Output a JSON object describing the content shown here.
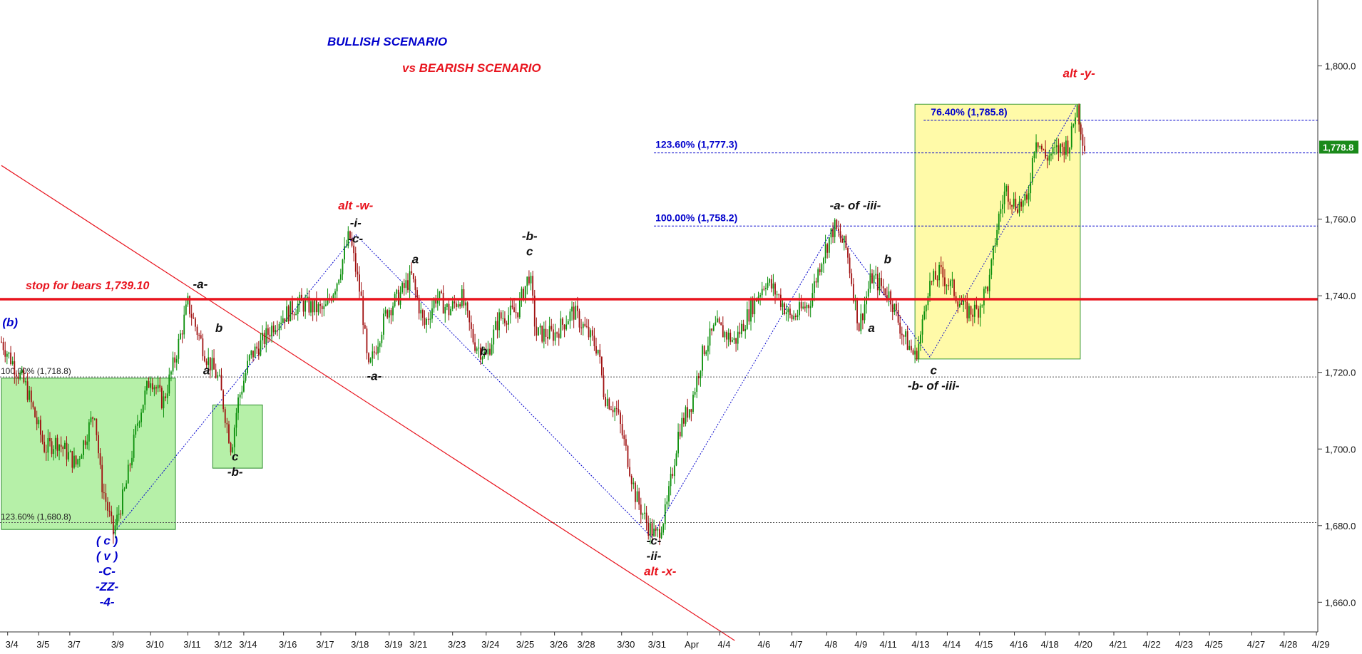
{
  "chart_data": {
    "type": "candlestick",
    "title": "BULLISH SCENARIO",
    "subtitle": "vs BEARISH SCENARIO",
    "colors": {
      "bullish": "#0000cc",
      "bearish": "#e8141e",
      "black": "#111111",
      "up_candle": "#0a8f0a",
      "down_candle": "#a01010",
      "green_box": "#b6f0a8",
      "yellow_box": "#fffaa8",
      "last_price_bg": "#1a8a1a"
    },
    "ylim": [
      1650,
      1815
    ],
    "yticks": [
      "1,660.0",
      "1,680.0",
      "1,700.0",
      "1,720.0",
      "1,740.0",
      "1,760.0",
      "1,800.0"
    ],
    "ytick_values": [
      1660,
      1680,
      1700,
      1720,
      1740,
      1760,
      1800
    ],
    "xticks": [
      "3/4",
      "3/5",
      "3/7",
      "3/9",
      "3/10",
      "3/11",
      "3/12",
      "3/14",
      "3/16",
      "3/17",
      "3/18",
      "3/19",
      "3/21",
      "3/23",
      "3/24",
      "3/25",
      "3/26",
      "3/28",
      "3/30",
      "3/31",
      "Apr",
      "4/4",
      "4/6",
      "4/7",
      "4/8",
      "4/9",
      "4/11",
      "4/13",
      "4/14",
      "4/15",
      "4/16",
      "4/18",
      "4/20",
      "4/21",
      "4/22",
      "4/23",
      "4/25",
      "4/27",
      "4/28",
      "4/29"
    ],
    "xtick_index": [
      0.5,
      3,
      5.5,
      9,
      12,
      15,
      17.5,
      19.5,
      22.7,
      25.7,
      28.5,
      31.2,
      33.2,
      36.3,
      39,
      41.8,
      44.5,
      46.7,
      49.9,
      52.4,
      55.2,
      57.8,
      61,
      63.6,
      66.4,
      68.8,
      71,
      73.6,
      76.1,
      78.7,
      81.5,
      84,
      86.7,
      89.5,
      92.2,
      94.8,
      97.2,
      100.6,
      103.2,
      105.8
    ],
    "last_price": "1,778.8",
    "last_price_value": 1778.8,
    "price_path": [
      [
        0,
        1728
      ],
      [
        2,
        1716
      ],
      [
        3.5,
        1700
      ],
      [
        4.5,
        1702
      ],
      [
        6,
        1696
      ],
      [
        7.5,
        1710
      ],
      [
        8,
        1692
      ],
      [
        9,
        1678
      ],
      [
        10,
        1690
      ],
      [
        11,
        1708
      ],
      [
        12,
        1719
      ],
      [
        13,
        1712
      ],
      [
        14,
        1724
      ],
      [
        15,
        1738
      ],
      [
        15.5,
        1733
      ],
      [
        16.5,
        1724
      ],
      [
        17.5,
        1718
      ],
      [
        18.5,
        1700
      ],
      [
        19,
        1712
      ],
      [
        20,
        1724
      ],
      [
        21,
        1728
      ],
      [
        22,
        1733
      ],
      [
        24,
        1738
      ],
      [
        26,
        1736
      ],
      [
        27,
        1744
      ],
      [
        28,
        1756
      ],
      [
        29,
        1738
      ],
      [
        29.5,
        1720
      ],
      [
        31,
        1736
      ],
      [
        32,
        1740
      ],
      [
        33,
        1745
      ],
      [
        34,
        1732
      ],
      [
        35,
        1740
      ],
      [
        36,
        1736
      ],
      [
        37,
        1740
      ],
      [
        38,
        1728
      ],
      [
        39,
        1724
      ],
      [
        40,
        1734
      ],
      [
        41.5,
        1736
      ],
      [
        42.5,
        1746
      ],
      [
        43,
        1730
      ],
      [
        44.5,
        1730
      ],
      [
        46,
        1736
      ],
      [
        48,
        1726
      ],
      [
        48.5,
        1714
      ],
      [
        49.5,
        1710
      ],
      [
        50.5,
        1696
      ],
      [
        51,
        1688
      ],
      [
        52,
        1680
      ],
      [
        52.7,
        1677
      ],
      [
        53.5,
        1684
      ],
      [
        54.5,
        1705
      ],
      [
        55.5,
        1712
      ],
      [
        56.5,
        1726
      ],
      [
        57.5,
        1732
      ],
      [
        59,
        1728
      ],
      [
        60.5,
        1738
      ],
      [
        61.5,
        1744
      ],
      [
        62.5,
        1740
      ],
      [
        63.5,
        1734
      ],
      [
        65,
        1738
      ],
      [
        66,
        1750
      ],
      [
        67,
        1758
      ],
      [
        68,
        1752
      ],
      [
        68.5,
        1742
      ],
      [
        69,
        1732
      ],
      [
        70,
        1745
      ],
      [
        71.5,
        1740
      ],
      [
        72.5,
        1730
      ],
      [
        73.5,
        1724
      ],
      [
        74,
        1730
      ],
      [
        74.5,
        1742
      ],
      [
        75.5,
        1746
      ],
      [
        76.5,
        1742
      ],
      [
        77.5,
        1736
      ],
      [
        78.5,
        1736
      ],
      [
        79.5,
        1744
      ],
      [
        80.2,
        1760
      ],
      [
        80.8,
        1768
      ],
      [
        81.5,
        1764
      ],
      [
        82.5,
        1764
      ],
      [
        83.2,
        1782
      ],
      [
        84,
        1776
      ],
      [
        85,
        1778
      ],
      [
        86,
        1780
      ],
      [
        86.5,
        1790
      ],
      [
        87.2,
        1778
      ]
    ],
    "lines": {
      "stop": {
        "label": "stop for bears 1,739.10",
        "value": 1739.1
      },
      "fib_left": [
        {
          "label": "100.00% (1,718.8)",
          "value": 1718.8
        },
        {
          "label": "123.60% (1,680.8)",
          "value": 1680.8
        }
      ],
      "fib_right": [
        {
          "label": "123.60% (1,777.3)",
          "value": 1777.3
        },
        {
          "label": "100.00% (1,758.2)",
          "value": 1758.2
        },
        {
          "label": "76.40% (1,785.8)",
          "value": 1785.8
        }
      ]
    },
    "zones": [
      {
        "from": 0,
        "to": 14,
        "low": 1679,
        "high": 1718.5,
        "color": "green"
      },
      {
        "from": 17,
        "to": 21,
        "low": 1695,
        "high": 1711.5,
        "color": "green"
      },
      {
        "from": 73.5,
        "to": 86.8,
        "low": 1723.5,
        "high": 1790,
        "color": "yellow"
      }
    ],
    "annotations": [
      {
        "text": "alt -w-",
        "series": "bearish",
        "x": 28.5,
        "y": 1762.5
      },
      {
        "text": "-i-",
        "series": "black",
        "x": 28.5,
        "y": 1758
      },
      {
        "text": "-c-",
        "series": "black",
        "x": 28.5,
        "y": 1759.5,
        "dy": 0
      },
      {
        "text": "a",
        "series": "black",
        "x": 33.3,
        "y": 1748.5
      },
      {
        "text": "-b-",
        "series": "black",
        "x": 42.5,
        "y": 1754.5
      },
      {
        "text": "c",
        "series": "black",
        "x": 42.5,
        "y": 1750.5
      },
      {
        "text": "-a-",
        "series": "black",
        "x": 16,
        "y": 1742
      },
      {
        "text": "b",
        "series": "black",
        "x": 17.5,
        "y": 1730.5
      },
      {
        "text": "a",
        "series": "black",
        "x": 16.5,
        "y": 1719.5
      },
      {
        "text": "c",
        "series": "black",
        "x": 18.8,
        "y": 1697
      },
      {
        "text": "-b-",
        "series": "black",
        "x": 18.8,
        "y": 1693
      },
      {
        "text": "-a-",
        "series": "black",
        "x": 30,
        "y": 1718
      },
      {
        "text": "b",
        "series": "black",
        "x": 38.8,
        "y": 1724.5
      },
      {
        "text": "-c-",
        "series": "black",
        "x": 52.5,
        "y": 1675
      },
      {
        "text": "-ii-",
        "series": "black",
        "x": 52.5,
        "y": 1671
      },
      {
        "text": "alt -x-",
        "series": "bearish",
        "x": 53,
        "y": 1667
      },
      {
        "text": "-a- of -iii-",
        "series": "black",
        "x": 68.7,
        "y": 1762.5
      },
      {
        "text": "b",
        "series": "black",
        "x": 71.3,
        "y": 1748.5
      },
      {
        "text": "a",
        "series": "black",
        "x": 70,
        "y": 1730.5
      },
      {
        "text": "c",
        "series": "black",
        "x": 75,
        "y": 1719.5
      },
      {
        "text": "-b- of -iii-",
        "series": "black",
        "x": 75,
        "y": 1715.5
      },
      {
        "text": "alt -y-",
        "series": "bearish",
        "x": 86.7,
        "y": 1797
      },
      {
        "text": "(b)",
        "series": "bullish",
        "x": 0.7,
        "y": 1732
      },
      {
        "text": "( c )",
        "series": "bullish",
        "x": 8.5,
        "y": 1675
      },
      {
        "text": "( v )",
        "series": "bullish",
        "x": 8.5,
        "y": 1671
      },
      {
        "text": "-C-",
        "series": "bullish",
        "x": 8.5,
        "y": 1667
      },
      {
        "text": "-ZZ-",
        "series": "bullish",
        "x": 8.5,
        "y": 1663
      },
      {
        "text": "-4-",
        "series": "bullish",
        "x": 8.5,
        "y": 1659
      }
    ],
    "wave_path": [
      [
        9,
        1678
      ],
      [
        28.5,
        1756
      ],
      [
        52.3,
        1677
      ],
      [
        67,
        1758
      ],
      [
        74.7,
        1724
      ],
      [
        86.5,
        1790
      ]
    ],
    "trend_line": [
      [
        0,
        1774
      ],
      [
        59,
        1650
      ]
    ]
  }
}
